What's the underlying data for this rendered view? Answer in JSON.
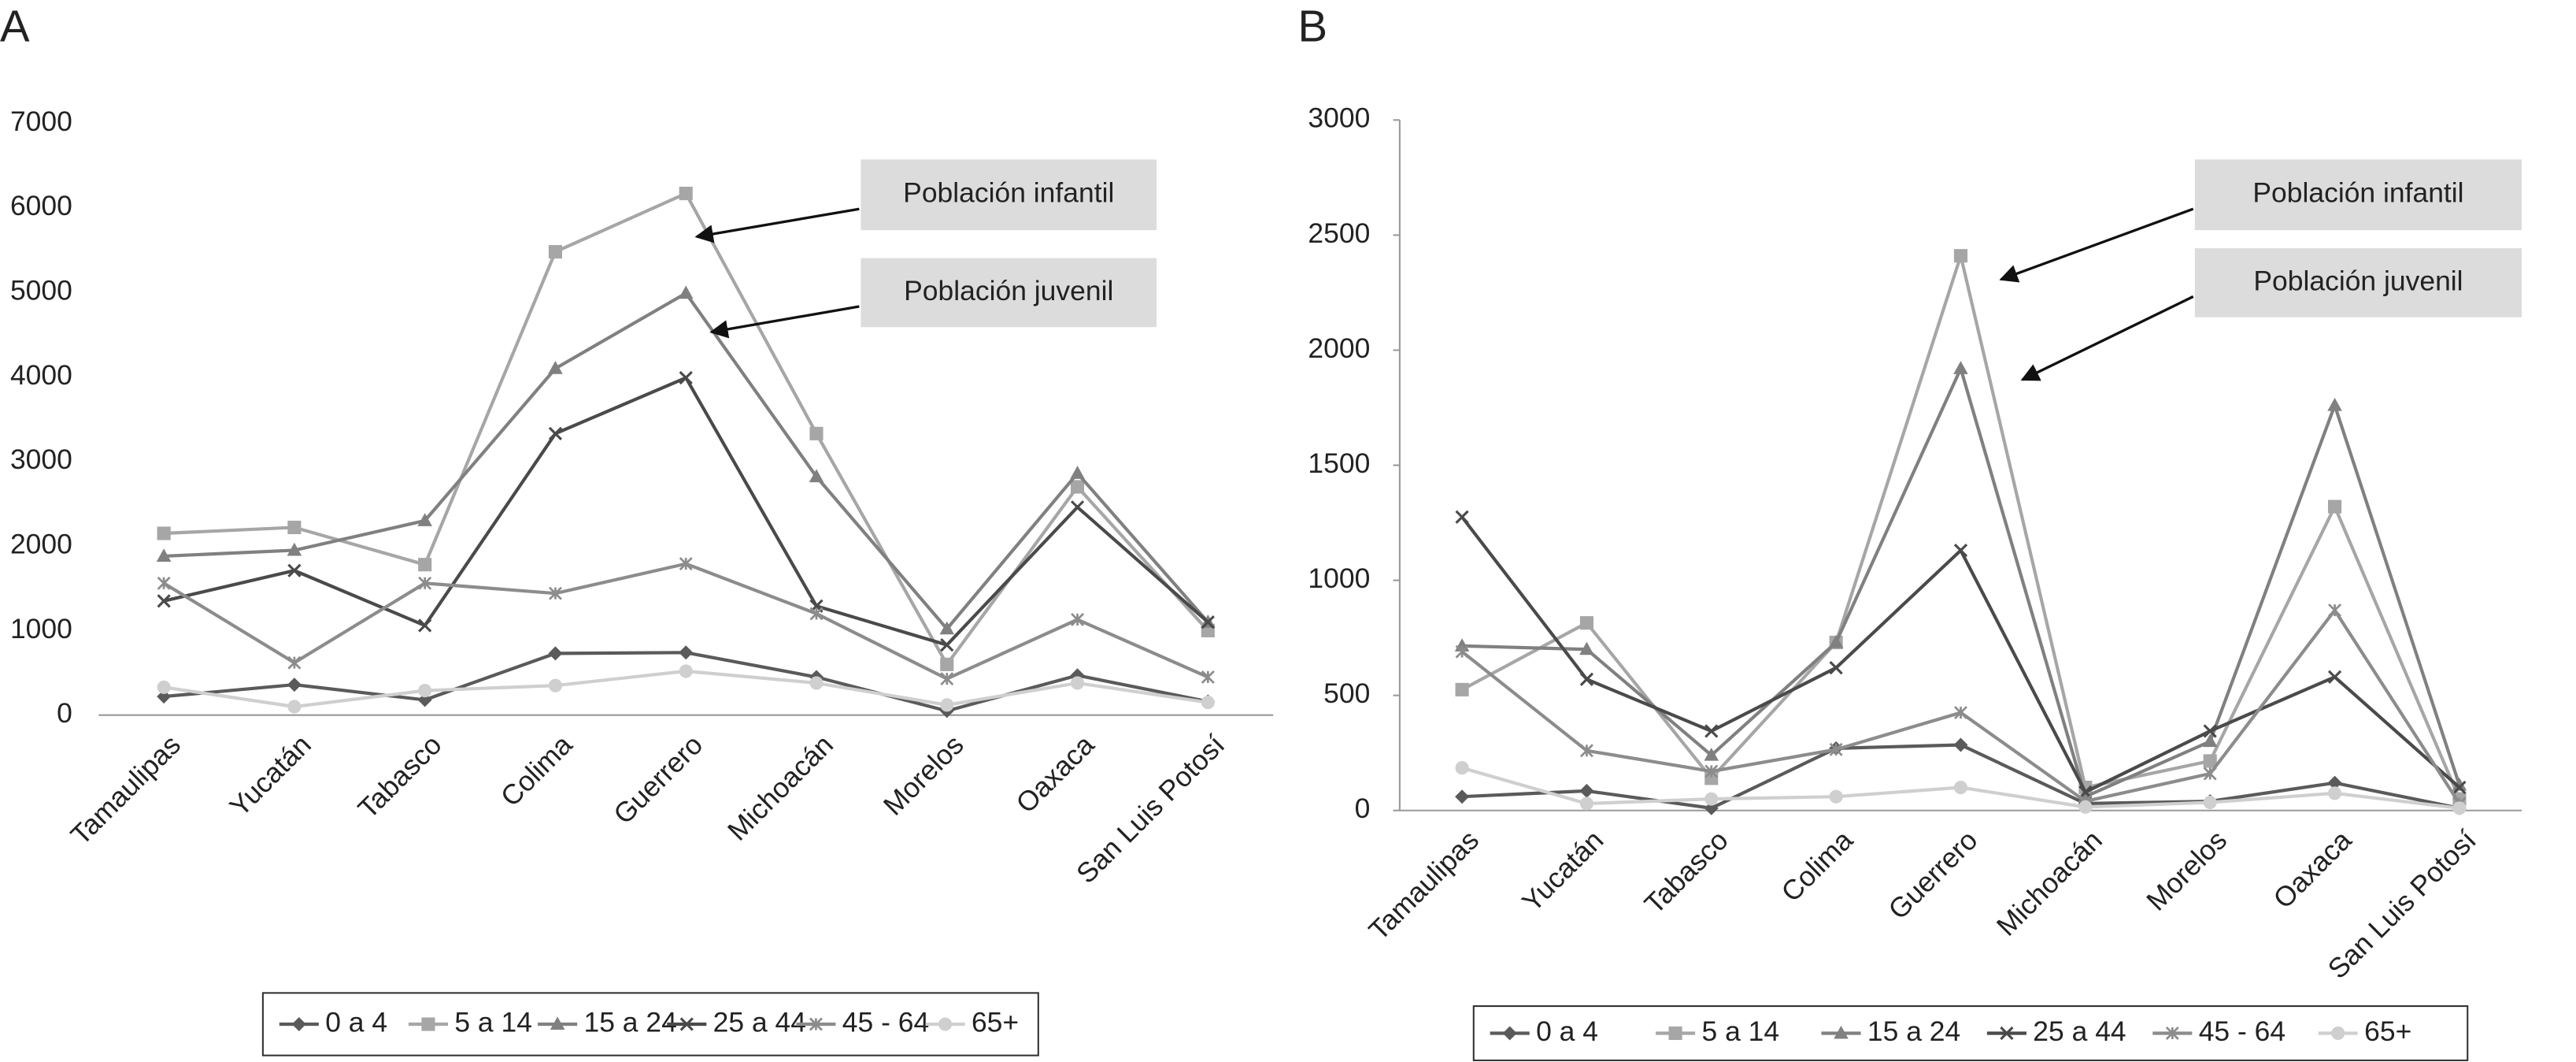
{
  "chart_data": [
    {
      "type": "line",
      "title": "A",
      "categories": [
        "Tamaulipas",
        "Yucatán",
        "Tabasco",
        "Colima",
        "Guerrero",
        "Michoacán",
        "Morelos",
        "Oaxaca",
        "San Luis Potosí"
      ],
      "ylim": [
        0,
        7000
      ],
      "yticks": [
        0,
        1000,
        2000,
        3000,
        4000,
        5000,
        6000,
        7000
      ],
      "y_axis_line": false,
      "series": [
        {
          "name": "0 a 4",
          "color": "#5a5a5a",
          "marker": "diamond",
          "values": [
            220,
            360,
            180,
            730,
            740,
            450,
            50,
            470,
            160
          ]
        },
        {
          "name": "5 a 14",
          "color": "#a6a6a6",
          "marker": "square",
          "values": [
            2150,
            2220,
            1780,
            5480,
            6170,
            3330,
            600,
            2700,
            1000
          ]
        },
        {
          "name": "15 a 24",
          "color": "#808080",
          "marker": "triangle",
          "values": [
            1880,
            1950,
            2300,
            4100,
            4990,
            2820,
            1020,
            2860,
            1100
          ]
        },
        {
          "name": "25 a 44",
          "color": "#4a4a4a",
          "marker": "x",
          "values": [
            1350,
            1710,
            1060,
            3330,
            3990,
            1290,
            830,
            2460,
            1100
          ]
        },
        {
          "name": "45 - 64",
          "color": "#8c8c8c",
          "marker": "star",
          "values": [
            1560,
            620,
            1560,
            1440,
            1790,
            1200,
            430,
            1130,
            450
          ]
        },
        {
          "name": "65+",
          "color": "#cfcfcf",
          "marker": "circle",
          "values": [
            330,
            100,
            290,
            350,
            520,
            380,
            120,
            380,
            150
          ]
        }
      ],
      "annotations": [
        "Población infantil",
        "Población juvenil"
      ]
    },
    {
      "type": "line",
      "title": "B",
      "categories": [
        "Tamaulipas",
        "Yucatán",
        "Tabasco",
        "Colima",
        "Guerrero",
        "Michoacán",
        "Morelos",
        "Oaxaca",
        "San Luis Potosí"
      ],
      "ylim": [
        0,
        3000
      ],
      "yticks": [
        0,
        500,
        1000,
        1500,
        2000,
        2500,
        3000
      ],
      "y_axis_line": true,
      "series": [
        {
          "name": "0 a 4",
          "color": "#5a5a5a",
          "marker": "diamond",
          "values": [
            60,
            85,
            10,
            270,
            285,
            30,
            40,
            120,
            10
          ]
        },
        {
          "name": "5 a 14",
          "color": "#a6a6a6",
          "marker": "square",
          "values": [
            525,
            815,
            140,
            730,
            2410,
            100,
            215,
            1320,
            50
          ]
        },
        {
          "name": "15 a 24",
          "color": "#808080",
          "marker": "triangle",
          "values": [
            715,
            700,
            240,
            730,
            1920,
            60,
            300,
            1760,
            110
          ]
        },
        {
          "name": "25 a 44",
          "color": "#4a4a4a",
          "marker": "x",
          "values": [
            1275,
            570,
            345,
            620,
            1130,
            80,
            345,
            580,
            100
          ]
        },
        {
          "name": "45 - 64",
          "color": "#8c8c8c",
          "marker": "star",
          "values": [
            690,
            260,
            170,
            265,
            425,
            40,
            160,
            870,
            30
          ]
        },
        {
          "name": "65+",
          "color": "#cfcfcf",
          "marker": "circle",
          "values": [
            185,
            30,
            50,
            60,
            100,
            15,
            35,
            75,
            10
          ]
        }
      ],
      "annotations": [
        "Población infantil",
        "Población juvenil"
      ]
    }
  ]
}
